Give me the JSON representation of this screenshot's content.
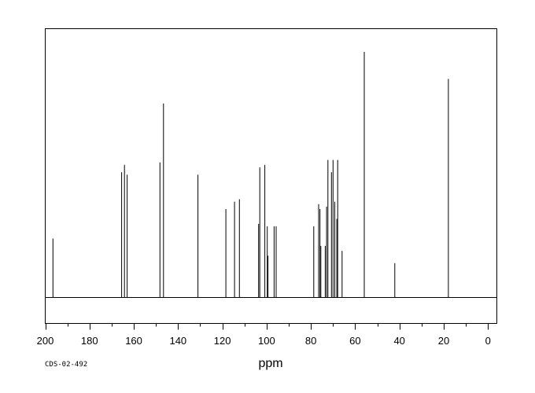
{
  "chart_data": {
    "type": "line",
    "xlabel": "ppm",
    "ylabel": "",
    "title": "",
    "xlim": [
      200,
      -4
    ],
    "x_reversed": true,
    "ylim": [
      0,
      100
    ],
    "grid": false,
    "x_ticks": [
      200,
      180,
      160,
      140,
      120,
      100,
      80,
      60,
      40,
      20,
      0
    ],
    "peaks": [
      {
        "x": 196.5,
        "y": 24
      },
      {
        "x": 165.5,
        "y": 51
      },
      {
        "x": 164.2,
        "y": 54
      },
      {
        "x": 163.0,
        "y": 50
      },
      {
        "x": 148.2,
        "y": 55
      },
      {
        "x": 146.6,
        "y": 79
      },
      {
        "x": 131.0,
        "y": 50
      },
      {
        "x": 118.4,
        "y": 36
      },
      {
        "x": 114.5,
        "y": 39
      },
      {
        "x": 112.3,
        "y": 40
      },
      {
        "x": 103.6,
        "y": 30
      },
      {
        "x": 103.1,
        "y": 53
      },
      {
        "x": 100.8,
        "y": 54
      },
      {
        "x": 99.7,
        "y": 29
      },
      {
        "x": 99.4,
        "y": 17
      },
      {
        "x": 96.6,
        "y": 29
      },
      {
        "x": 95.7,
        "y": 29
      },
      {
        "x": 78.7,
        "y": 29
      },
      {
        "x": 76.5,
        "y": 38
      },
      {
        "x": 75.9,
        "y": 36
      },
      {
        "x": 75.5,
        "y": 21
      },
      {
        "x": 73.5,
        "y": 21
      },
      {
        "x": 72.9,
        "y": 37
      },
      {
        "x": 72.3,
        "y": 56
      },
      {
        "x": 70.7,
        "y": 51
      },
      {
        "x": 70.0,
        "y": 56
      },
      {
        "x": 69.2,
        "y": 39
      },
      {
        "x": 68.3,
        "y": 32
      },
      {
        "x": 67.9,
        "y": 56
      },
      {
        "x": 65.9,
        "y": 19
      },
      {
        "x": 55.9,
        "y": 100
      },
      {
        "x": 42.1,
        "y": 14
      },
      {
        "x": 17.9,
        "y": 89
      }
    ]
  },
  "footer": {
    "code": "CDS-02-492"
  }
}
